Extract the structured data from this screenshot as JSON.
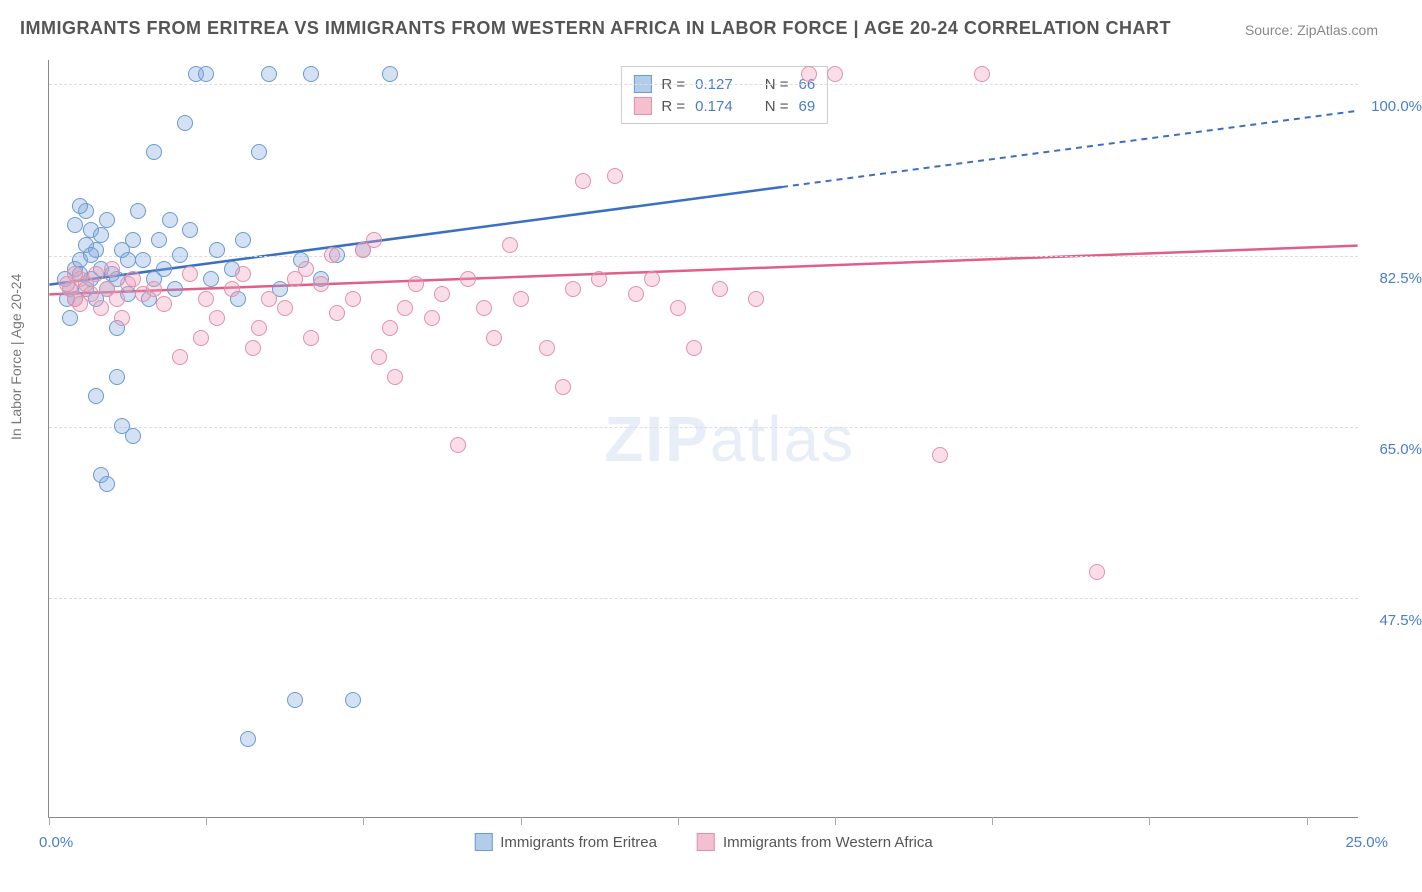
{
  "title": "IMMIGRANTS FROM ERITREA VS IMMIGRANTS FROM WESTERN AFRICA IN LABOR FORCE | AGE 20-24 CORRELATION CHART",
  "source": "Source: ZipAtlas.com",
  "y_axis_label": "In Labor Force | Age 20-24",
  "watermark_a": "ZIP",
  "watermark_b": "atlas",
  "chart": {
    "type": "scatter",
    "x_min": 0,
    "x_max": 25,
    "y_min": 25,
    "y_max": 102.5,
    "x_ticks": [
      0,
      3,
      6,
      9,
      12,
      15,
      18,
      21,
      24
    ],
    "x_tick_label_first": "0.0%",
    "x_tick_label_last": "25.0%",
    "y_gridlines": [
      47.5,
      65.0,
      82.5,
      100.0
    ],
    "y_tick_labels": [
      "47.5%",
      "65.0%",
      "82.5%",
      "100.0%"
    ],
    "grid_color": "#dddddd",
    "background_color": "#ffffff",
    "axis_color": "#888888",
    "point_radius": 8,
    "point_stroke_width": 1,
    "series": [
      {
        "name": "Immigrants from Eritrea",
        "fill": "rgba(130,170,220,0.35)",
        "stroke": "#6a9bd4",
        "swatch_fill": "#b3cce8",
        "swatch_stroke": "#6a9bd4",
        "trend_color": "#3b6fc0",
        "trend_solid": {
          "x1": 0,
          "y1": 79.5,
          "x2": 14,
          "y2": 89.5
        },
        "trend_dashed": {
          "x1": 14,
          "y1": 89.5,
          "x2": 25,
          "y2": 97.3
        },
        "stats": {
          "R_label": "R =",
          "R": "0.127",
          "N_label": "N =",
          "N": "66"
        },
        "points": [
          {
            "x": 0.3,
            "y": 80
          },
          {
            "x": 0.4,
            "y": 79
          },
          {
            "x": 0.5,
            "y": 81
          },
          {
            "x": 0.5,
            "y": 78
          },
          {
            "x": 0.6,
            "y": 82
          },
          {
            "x": 0.6,
            "y": 80.5
          },
          {
            "x": 0.7,
            "y": 79
          },
          {
            "x": 0.7,
            "y": 87
          },
          {
            "x": 0.8,
            "y": 85
          },
          {
            "x": 0.8,
            "y": 80
          },
          {
            "x": 0.9,
            "y": 83
          },
          {
            "x": 0.9,
            "y": 78
          },
          {
            "x": 1.0,
            "y": 84.5
          },
          {
            "x": 1.0,
            "y": 81
          },
          {
            "x": 1.1,
            "y": 86
          },
          {
            "x": 1.1,
            "y": 79
          },
          {
            "x": 1.2,
            "y": 80.5
          },
          {
            "x": 1.3,
            "y": 80
          },
          {
            "x": 1.3,
            "y": 75
          },
          {
            "x": 1.4,
            "y": 83
          },
          {
            "x": 1.4,
            "y": 65
          },
          {
            "x": 1.5,
            "y": 82
          },
          {
            "x": 1.5,
            "y": 78.5
          },
          {
            "x": 1.6,
            "y": 84
          },
          {
            "x": 1.7,
            "y": 87
          },
          {
            "x": 1.8,
            "y": 82
          },
          {
            "x": 1.9,
            "y": 78
          },
          {
            "x": 2.0,
            "y": 93
          },
          {
            "x": 2.0,
            "y": 80
          },
          {
            "x": 2.1,
            "y": 84
          },
          {
            "x": 2.2,
            "y": 81
          },
          {
            "x": 2.4,
            "y": 79
          },
          {
            "x": 2.5,
            "y": 82.5
          },
          {
            "x": 2.6,
            "y": 96
          },
          {
            "x": 2.8,
            "y": 101
          },
          {
            "x": 3.0,
            "y": 101
          },
          {
            "x": 3.1,
            "y": 80
          },
          {
            "x": 3.2,
            "y": 83
          },
          {
            "x": 3.5,
            "y": 81
          },
          {
            "x": 3.6,
            "y": 78
          },
          {
            "x": 3.7,
            "y": 84
          },
          {
            "x": 3.8,
            "y": 33
          },
          {
            "x": 4.0,
            "y": 93
          },
          {
            "x": 4.2,
            "y": 101
          },
          {
            "x": 4.4,
            "y": 79
          },
          {
            "x": 4.7,
            "y": 37
          },
          {
            "x": 4.8,
            "y": 82
          },
          {
            "x": 5.0,
            "y": 101
          },
          {
            "x": 5.2,
            "y": 80
          },
          {
            "x": 5.5,
            "y": 82.5
          },
          {
            "x": 5.8,
            "y": 37
          },
          {
            "x": 6.0,
            "y": 83
          },
          {
            "x": 6.5,
            "y": 101
          },
          {
            "x": 1.0,
            "y": 60
          },
          {
            "x": 1.1,
            "y": 59
          },
          {
            "x": 1.3,
            "y": 70
          },
          {
            "x": 0.9,
            "y": 68
          },
          {
            "x": 1.6,
            "y": 64
          },
          {
            "x": 0.5,
            "y": 85.5
          },
          {
            "x": 0.6,
            "y": 87.5
          },
          {
            "x": 0.7,
            "y": 83.5
          },
          {
            "x": 0.8,
            "y": 82.5
          },
          {
            "x": 2.3,
            "y": 86
          },
          {
            "x": 2.7,
            "y": 85
          },
          {
            "x": 0.4,
            "y": 76
          },
          {
            "x": 0.35,
            "y": 78
          }
        ]
      },
      {
        "name": "Immigrants from Western Africa",
        "fill": "rgba(240,160,185,0.35)",
        "stroke": "#e290ab",
        "swatch_fill": "#f4c0cf",
        "swatch_stroke": "#e290ab",
        "trend_color": "#e05f86",
        "trend_solid": {
          "x1": 0,
          "y1": 78.5,
          "x2": 25,
          "y2": 83.5
        },
        "trend_dashed": null,
        "stats": {
          "R_label": "R =",
          "R": "0.174",
          "N_label": "N =",
          "N": "69"
        },
        "points": [
          {
            "x": 0.4,
            "y": 79
          },
          {
            "x": 0.5,
            "y": 78
          },
          {
            "x": 0.6,
            "y": 80
          },
          {
            "x": 0.7,
            "y": 79.5
          },
          {
            "x": 0.8,
            "y": 78.5
          },
          {
            "x": 0.9,
            "y": 80.5
          },
          {
            "x": 1.0,
            "y": 77
          },
          {
            "x": 1.1,
            "y": 79
          },
          {
            "x": 1.2,
            "y": 81
          },
          {
            "x": 1.3,
            "y": 78
          },
          {
            "x": 1.5,
            "y": 79.5
          },
          {
            "x": 1.6,
            "y": 80
          },
          {
            "x": 1.8,
            "y": 78.5
          },
          {
            "x": 2.0,
            "y": 79
          },
          {
            "x": 2.2,
            "y": 77.5
          },
          {
            "x": 2.5,
            "y": 72
          },
          {
            "x": 2.7,
            "y": 80.5
          },
          {
            "x": 3.0,
            "y": 78
          },
          {
            "x": 3.2,
            "y": 76
          },
          {
            "x": 3.5,
            "y": 79
          },
          {
            "x": 3.7,
            "y": 80.5
          },
          {
            "x": 4.0,
            "y": 75
          },
          {
            "x": 4.2,
            "y": 78
          },
          {
            "x": 4.5,
            "y": 77
          },
          {
            "x": 4.7,
            "y": 80
          },
          {
            "x": 5.0,
            "y": 74
          },
          {
            "x": 5.2,
            "y": 79.5
          },
          {
            "x": 5.5,
            "y": 76.5
          },
          {
            "x": 5.8,
            "y": 78
          },
          {
            "x": 6.0,
            "y": 83
          },
          {
            "x": 6.2,
            "y": 84
          },
          {
            "x": 6.5,
            "y": 75
          },
          {
            "x": 6.8,
            "y": 77
          },
          {
            "x": 7.0,
            "y": 79.5
          },
          {
            "x": 7.3,
            "y": 76
          },
          {
            "x": 7.5,
            "y": 78.5
          },
          {
            "x": 7.8,
            "y": 63
          },
          {
            "x": 8.0,
            "y": 80
          },
          {
            "x": 8.3,
            "y": 77
          },
          {
            "x": 8.5,
            "y": 74
          },
          {
            "x": 8.8,
            "y": 83.5
          },
          {
            "x": 9.0,
            "y": 78
          },
          {
            "x": 9.5,
            "y": 73
          },
          {
            "x": 10.0,
            "y": 79
          },
          {
            "x": 10.2,
            "y": 90
          },
          {
            "x": 10.5,
            "y": 80
          },
          {
            "x": 10.8,
            "y": 90.5
          },
          {
            "x": 11.2,
            "y": 78.5
          },
          {
            "x": 11.5,
            "y": 80
          },
          {
            "x": 12.0,
            "y": 77
          },
          {
            "x": 12.3,
            "y": 73
          },
          {
            "x": 12.8,
            "y": 79
          },
          {
            "x": 13.5,
            "y": 78
          },
          {
            "x": 14.5,
            "y": 101
          },
          {
            "x": 15.0,
            "y": 101
          },
          {
            "x": 17.8,
            "y": 101
          },
          {
            "x": 17.0,
            "y": 62
          },
          {
            "x": 20.0,
            "y": 50
          },
          {
            "x": 6.3,
            "y": 72
          },
          {
            "x": 6.6,
            "y": 70
          },
          {
            "x": 4.9,
            "y": 81
          },
          {
            "x": 5.4,
            "y": 82.5
          },
          {
            "x": 0.5,
            "y": 80.5
          },
          {
            "x": 0.6,
            "y": 77.5
          },
          {
            "x": 0.35,
            "y": 79.5
          },
          {
            "x": 1.4,
            "y": 76
          },
          {
            "x": 3.9,
            "y": 73
          },
          {
            "x": 2.9,
            "y": 74
          },
          {
            "x": 9.8,
            "y": 69
          }
        ]
      }
    ]
  },
  "legend_items": [
    {
      "label": "Immigrants from Eritrea"
    },
    {
      "label": "Immigrants from Western Africa"
    }
  ]
}
